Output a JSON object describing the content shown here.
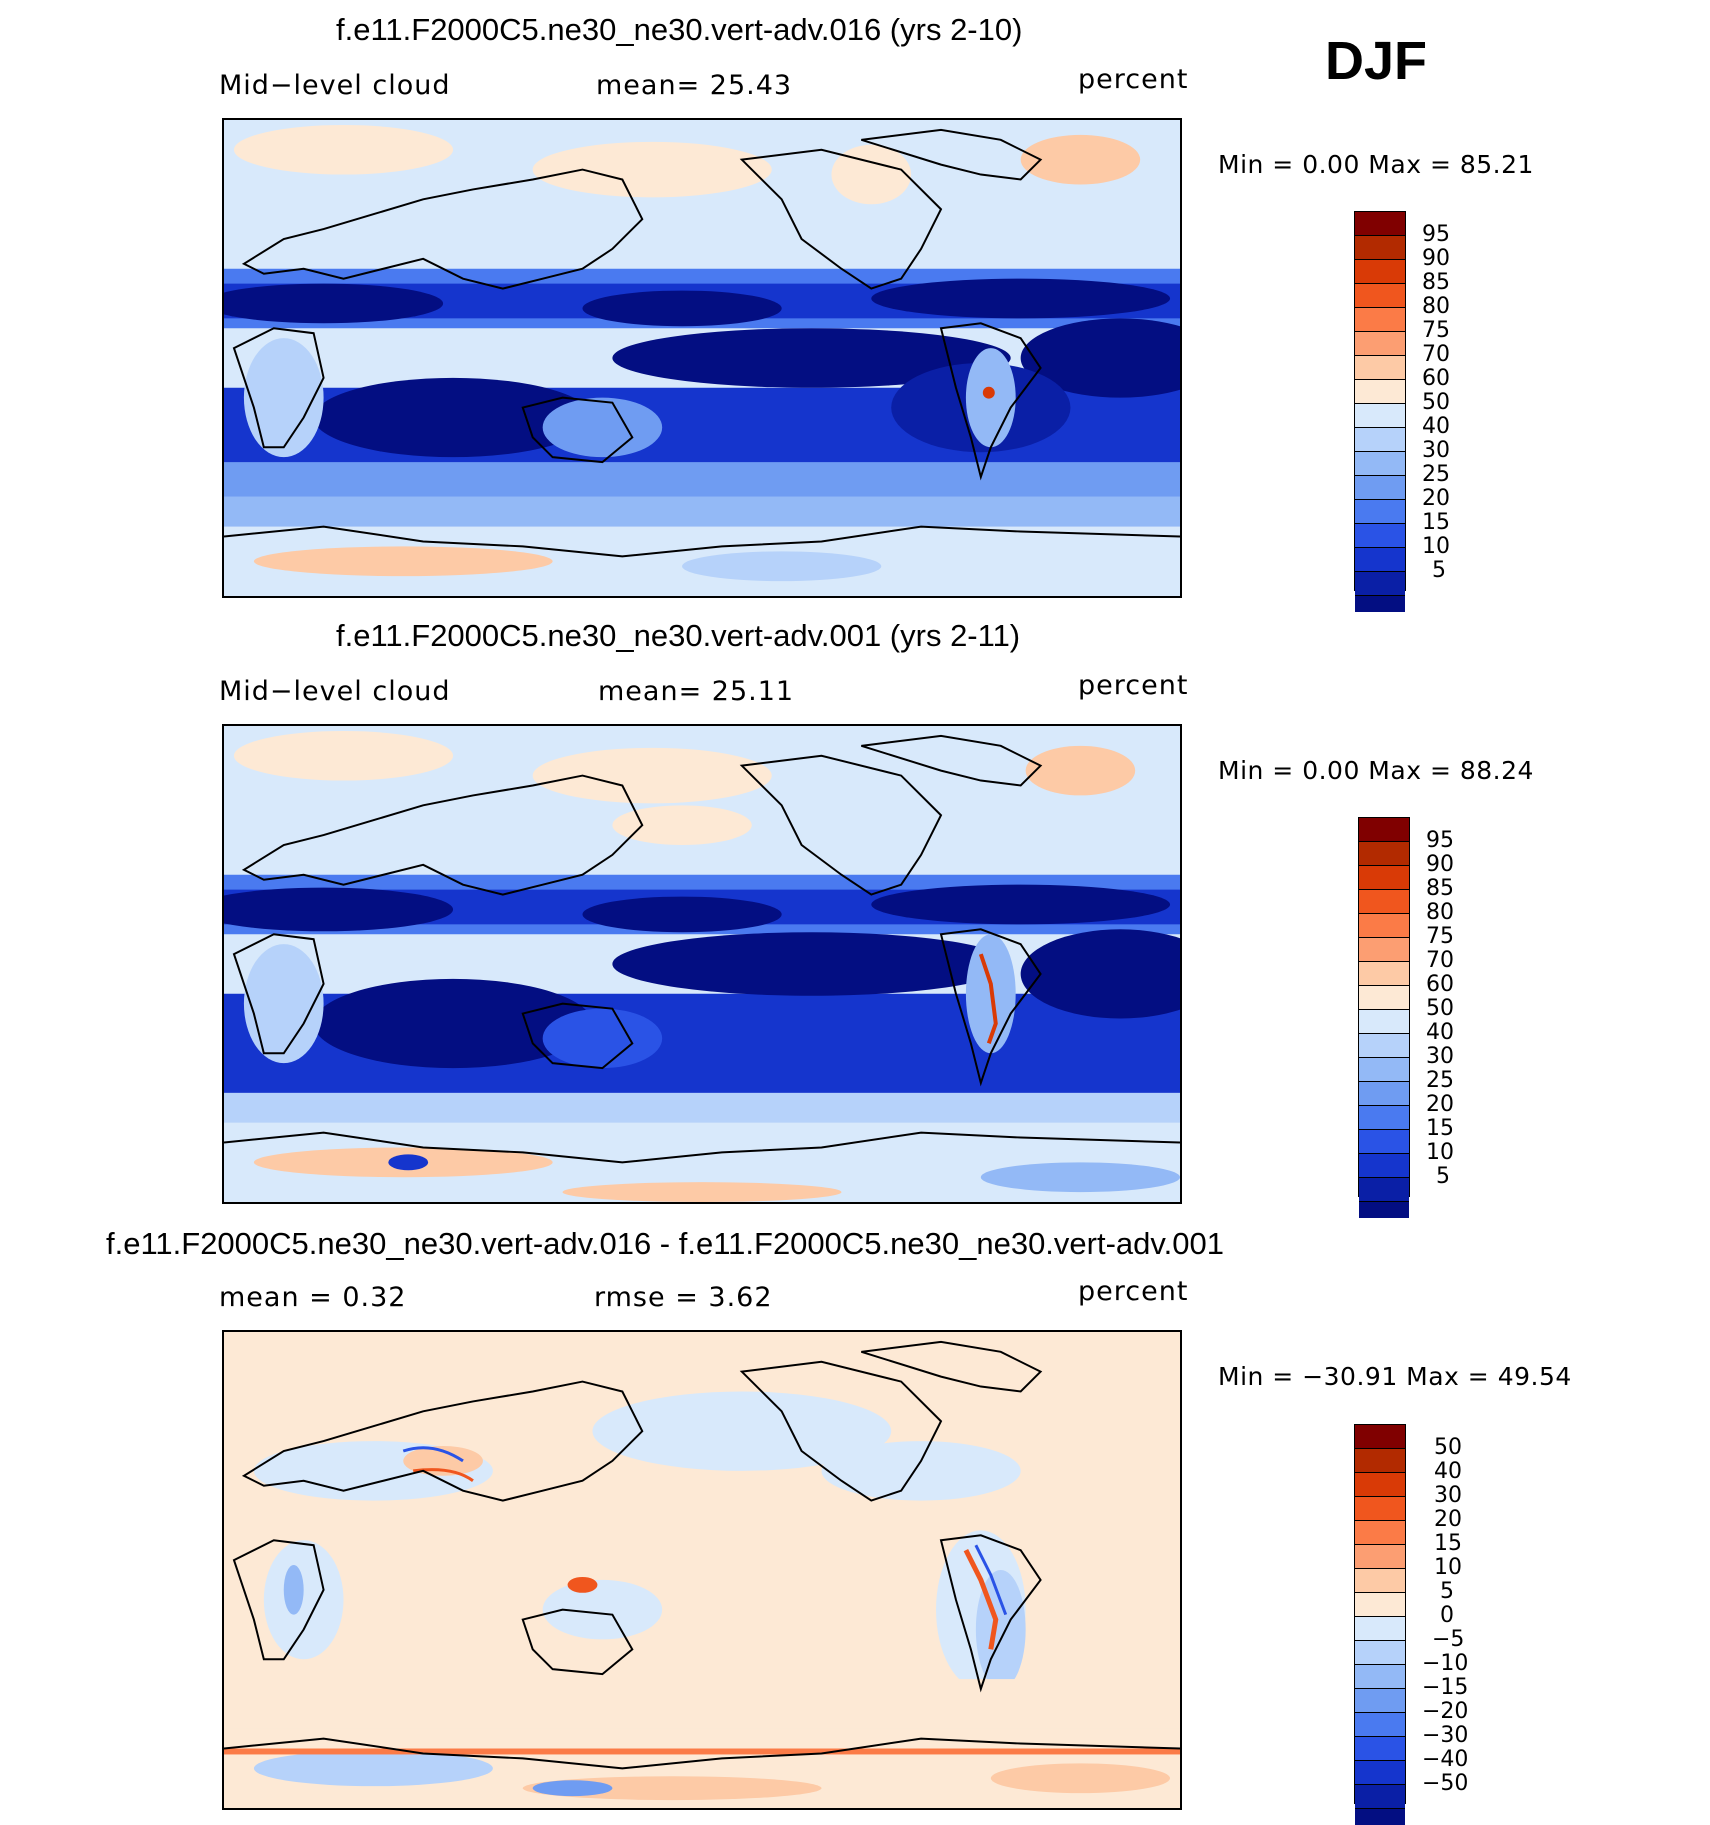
{
  "season": "DJF",
  "panels": [
    {
      "title": "f.e11.F2000C5.ne30_ne30.vert-adv.016 (yrs 2-10)",
      "left_label": "Mid−level cloud",
      "center_label": "mean=   25.43",
      "units": "percent",
      "minmax": "Min =     0.00 Max =   85.21",
      "colorbar_labels": [
        "95",
        "90",
        "85",
        "80",
        "75",
        "70",
        "60",
        "50",
        "40",
        "30",
        "25",
        "20",
        "15",
        "10",
        "5"
      ]
    },
    {
      "title": "f.e11.F2000C5.ne30_ne30.vert-adv.001 (yrs 2-11)",
      "left_label": "Mid−level cloud",
      "center_label": "mean=   25.11",
      "units": "percent",
      "minmax": "Min =     0.00 Max =   88.24",
      "colorbar_labels": [
        "95",
        "90",
        "85",
        "80",
        "75",
        "70",
        "60",
        "50",
        "40",
        "30",
        "25",
        "20",
        "15",
        "10",
        "5"
      ]
    },
    {
      "title": "f.e11.F2000C5.ne30_ne30.vert-adv.016 - f.e11.F2000C5.ne30_ne30.vert-adv.001",
      "left_label": "mean =    0.32",
      "center_label": "rmse =    3.62",
      "units": "percent",
      "minmax": "Min = −30.91  Max =   49.54",
      "colorbar_labels": [
        "50",
        "40",
        "30",
        "20",
        "15",
        "10",
        "5",
        "0",
        "−5",
        "−10",
        "−15",
        "−20",
        "−30",
        "−40",
        "−50"
      ]
    }
  ],
  "colors": {
    "colorbar_scale": [
      "#800000",
      "#b22a00",
      "#d93a06",
      "#f0561e",
      "#fb7b47",
      "#fc9e72",
      "#fdcaa6",
      "#fde9d5",
      "#d8e9fb",
      "#b6d2fa",
      "#93b9f6",
      "#6f9cf2",
      "#4a7af0",
      "#2a53e6",
      "#1535cd",
      "#0a1fa6",
      "#030e82"
    ],
    "land_outline": "#000000"
  }
}
